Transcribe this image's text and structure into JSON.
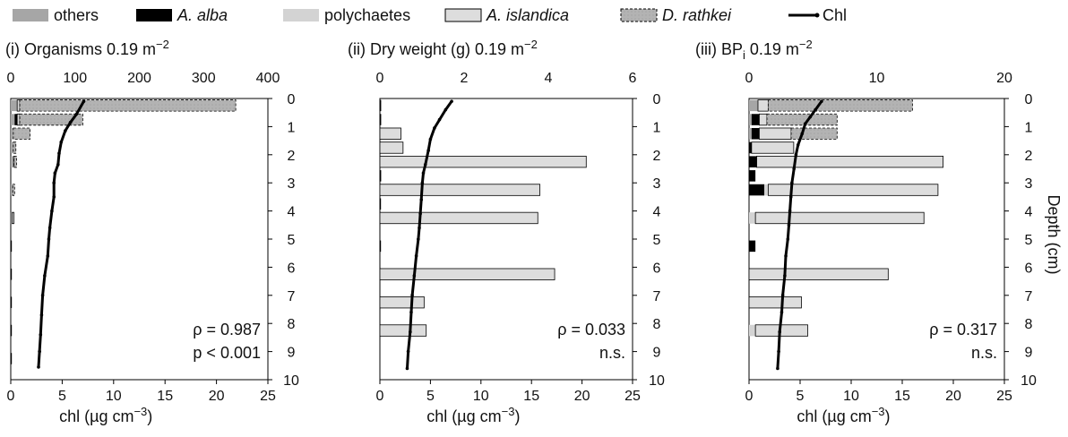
{
  "legend": {
    "items": [
      {
        "key": "others",
        "label": "others",
        "italic": false,
        "fill": "#a6a6a6",
        "stroke": "none",
        "dashed": false
      },
      {
        "key": "aalba",
        "label": "A. alba",
        "italic": true,
        "fill": "#000000",
        "stroke": "none",
        "dashed": false
      },
      {
        "key": "poly",
        "label": "polychaetes",
        "italic": false,
        "fill": "#d3d3d3",
        "stroke": "none",
        "dashed": false
      },
      {
        "key": "aisl",
        "label": "A. islandica",
        "italic": true,
        "fill": "#dddddd",
        "stroke": "#000000",
        "dashed": false
      },
      {
        "key": "drath",
        "label": "D. rathkei",
        "italic": true,
        "fill": "#b3b3b3",
        "stroke": "#000000",
        "dashed": true
      }
    ],
    "line_label": "Chl"
  },
  "colors": {
    "others": "#a6a6a6",
    "aalba": "#000000",
    "poly": "#d3d3d3",
    "aisl": "#dddddd",
    "drath": "#b3b3b3",
    "line": "#000000"
  },
  "depth_axis": {
    "label": "Depth (cm)",
    "ticks": [
      "0",
      "1",
      "2",
      "3",
      "4",
      "5",
      "6",
      "7",
      "8",
      "9",
      "10"
    ]
  },
  "chart_data": [
    {
      "type": "bar",
      "panel": "(i)",
      "title_prefix": "(i) Organisms 0.19 m",
      "title_sup": "−2",
      "top_axis": {
        "min": 0,
        "max": 400,
        "ticks": [
          "0",
          "100",
          "200",
          "300",
          "400"
        ]
      },
      "bottom_axis": {
        "min": 0,
        "max": 25,
        "ticks": [
          "0",
          "5",
          "10",
          "15",
          "20",
          "25"
        ],
        "label_prefix": "chl (µg cm",
        "label_sup": "−3",
        "label_suffix": ")"
      },
      "depth_range": [
        0,
        10
      ],
      "annotation": [
        "ρ = 0.987",
        "p < 0.001"
      ],
      "bars": [
        {
          "depth": 0.25,
          "segments": [
            {
              "series": "others",
              "value": 10
            },
            {
              "series": "aisl",
              "value": 4
            },
            {
              "series": "drath",
              "value": 336
            }
          ]
        },
        {
          "depth": 0.75,
          "segments": [
            {
              "series": "others",
              "value": 6
            },
            {
              "series": "aalba",
              "value": 4
            },
            {
              "series": "aisl",
              "value": 4
            },
            {
              "series": "drath",
              "value": 98
            }
          ]
        },
        {
          "depth": 1.25,
          "segments": [
            {
              "series": "others",
              "value": 4
            },
            {
              "series": "drath",
              "value": 26
            }
          ]
        },
        {
          "depth": 1.75,
          "segments": [
            {
              "series": "others",
              "value": 4
            },
            {
              "series": "drath",
              "value": 4
            }
          ]
        },
        {
          "depth": 2.25,
          "segments": [
            {
              "series": "others",
              "value": 4
            },
            {
              "series": "aalba",
              "value": 1
            },
            {
              "series": "drath",
              "value": 4
            }
          ]
        },
        {
          "depth": 3.25,
          "segments": [
            {
              "series": "others",
              "value": 3
            },
            {
              "series": "drath",
              "value": 3
            }
          ]
        },
        {
          "depth": 4.25,
          "segments": [
            {
              "series": "others",
              "value": 2
            },
            {
              "series": "aisl",
              "value": 3
            }
          ]
        },
        {
          "depth": 5.25,
          "segments": [
            {
              "series": "aalba",
              "value": 1
            }
          ]
        },
        {
          "depth": 6.25,
          "segments": [
            {
              "series": "aalba",
              "value": 1
            }
          ]
        },
        {
          "depth": 7.25,
          "segments": [
            {
              "series": "aalba",
              "value": 1
            }
          ]
        },
        {
          "depth": 8.25,
          "segments": [
            {
              "series": "aalba",
              "value": 1
            }
          ]
        },
        {
          "depth": 9.25,
          "segments": [
            {
              "series": "aalba",
              "value": 1
            }
          ]
        }
      ],
      "chl_line": [
        {
          "chl": 7.1,
          "depth": 0.1
        },
        {
          "chl": 6.4,
          "depth": 0.55
        },
        {
          "chl": 5.8,
          "depth": 0.85
        },
        {
          "chl": 5.3,
          "depth": 1.15
        },
        {
          "chl": 4.9,
          "depth": 1.55
        },
        {
          "chl": 4.7,
          "depth": 1.95
        },
        {
          "chl": 4.6,
          "depth": 2.35
        },
        {
          "chl": 4.3,
          "depth": 2.65
        },
        {
          "chl": 4.2,
          "depth": 3.0
        },
        {
          "chl": 4.2,
          "depth": 3.5
        },
        {
          "chl": 4.0,
          "depth": 4.0
        },
        {
          "chl": 3.8,
          "depth": 4.6
        },
        {
          "chl": 3.7,
          "depth": 5.0
        },
        {
          "chl": 3.6,
          "depth": 5.6
        },
        {
          "chl": 3.3,
          "depth": 6.3
        },
        {
          "chl": 3.1,
          "depth": 7.0
        },
        {
          "chl": 3.0,
          "depth": 7.7
        },
        {
          "chl": 2.9,
          "depth": 8.4
        },
        {
          "chl": 2.8,
          "depth": 9.0
        },
        {
          "chl": 2.7,
          "depth": 9.55
        }
      ]
    },
    {
      "type": "bar",
      "panel": "(ii)",
      "title_prefix": "(ii) Dry weight (g) 0.19 m",
      "title_sup": "−2",
      "top_axis": {
        "min": 0,
        "max": 6,
        "ticks": [
          "0",
          "2",
          "4",
          "6"
        ]
      },
      "bottom_axis": {
        "min": 0,
        "max": 25,
        "ticks": [
          "0",
          "5",
          "10",
          "15",
          "20",
          "25"
        ],
        "label_prefix": "chl (µg cm",
        "label_sup": "−3",
        "label_suffix": ")"
      },
      "depth_range": [
        0,
        10
      ],
      "annotation": [
        "ρ = 0.033",
        "n.s."
      ],
      "bars": [
        {
          "depth": 0.25,
          "segments": [
            {
              "series": "aalba",
              "value": 0.03
            }
          ]
        },
        {
          "depth": 0.75,
          "segments": [
            {
              "series": "aalba",
              "value": 0.03
            }
          ]
        },
        {
          "depth": 1.25,
          "segments": [
            {
              "series": "aisl",
              "value": 0.5
            }
          ]
        },
        {
          "depth": 1.75,
          "segments": [
            {
              "series": "aisl",
              "value": 0.55
            }
          ]
        },
        {
          "depth": 2.25,
          "segments": [
            {
              "series": "aisl",
              "value": 4.9
            }
          ]
        },
        {
          "depth": 2.75,
          "segments": [
            {
              "series": "aalba",
              "value": 0.03
            }
          ]
        },
        {
          "depth": 3.25,
          "segments": [
            {
              "series": "aisl",
              "value": 3.8
            }
          ]
        },
        {
          "depth": 3.75,
          "segments": [
            {
              "series": "aalba",
              "value": 0.02
            }
          ]
        },
        {
          "depth": 4.25,
          "segments": [
            {
              "series": "aisl",
              "value": 3.75
            }
          ]
        },
        {
          "depth": 5.25,
          "segments": [
            {
              "series": "aalba",
              "value": 0.02
            }
          ]
        },
        {
          "depth": 6.25,
          "segments": [
            {
              "series": "aisl",
              "value": 4.15
            }
          ]
        },
        {
          "depth": 7.25,
          "segments": [
            {
              "series": "aisl",
              "value": 1.05
            }
          ]
        },
        {
          "depth": 8.25,
          "segments": [
            {
              "series": "aisl",
              "value": 1.1
            }
          ]
        }
      ],
      "chl_line": [
        {
          "chl": 7.1,
          "depth": 0.1
        },
        {
          "chl": 6.5,
          "depth": 0.4
        },
        {
          "chl": 5.9,
          "depth": 0.75
        },
        {
          "chl": 5.4,
          "depth": 1.05
        },
        {
          "chl": 5.0,
          "depth": 1.45
        },
        {
          "chl": 4.8,
          "depth": 1.85
        },
        {
          "chl": 4.5,
          "depth": 2.35
        },
        {
          "chl": 4.3,
          "depth": 2.65
        },
        {
          "chl": 4.2,
          "depth": 3.0
        },
        {
          "chl": 4.1,
          "depth": 3.6
        },
        {
          "chl": 4.0,
          "depth": 4.1
        },
        {
          "chl": 3.9,
          "depth": 4.6
        },
        {
          "chl": 3.8,
          "depth": 5.0
        },
        {
          "chl": 3.6,
          "depth": 5.6
        },
        {
          "chl": 3.4,
          "depth": 6.3
        },
        {
          "chl": 3.2,
          "depth": 7.0
        },
        {
          "chl": 3.1,
          "depth": 7.6
        },
        {
          "chl": 3.0,
          "depth": 8.3
        },
        {
          "chl": 2.8,
          "depth": 9.0
        },
        {
          "chl": 2.7,
          "depth": 9.6
        }
      ]
    },
    {
      "type": "bar",
      "panel": "(iii)",
      "title_prefix": "(iii) BP",
      "title_sub": "i",
      "title_suffix": " 0.19 m",
      "title_sup": "−2",
      "top_axis": {
        "min": 0,
        "max": 20,
        "ticks": [
          "0",
          "10",
          "20"
        ]
      },
      "bottom_axis": {
        "min": 0,
        "max": 25,
        "ticks": [
          "0",
          "5",
          "10",
          "15",
          "20",
          "25"
        ],
        "label_prefix": "chl (µg cm",
        "label_sup": "−3",
        "label_suffix": ")"
      },
      "depth_range": [
        0,
        10
      ],
      "annotation": [
        "ρ = 0.317",
        "n.s."
      ],
      "bars": [
        {
          "depth": 0.25,
          "segments": [
            {
              "series": "others",
              "value": 0.7
            },
            {
              "series": "aisl",
              "value": 0.8
            },
            {
              "series": "drath",
              "value": 11.3
            }
          ]
        },
        {
          "depth": 0.75,
          "segments": [
            {
              "series": "others",
              "value": 0.2
            },
            {
              "series": "aalba",
              "value": 0.6
            },
            {
              "series": "aisl",
              "value": 0.6
            },
            {
              "series": "drath",
              "value": 5.5
            }
          ]
        },
        {
          "depth": 1.25,
          "segments": [
            {
              "series": "others",
              "value": 0.2
            },
            {
              "series": "aalba",
              "value": 0.6
            },
            {
              "series": "aisl",
              "value": 2.5
            },
            {
              "series": "drath",
              "value": 3.6
            }
          ]
        },
        {
          "depth": 1.75,
          "segments": [
            {
              "series": "aalba",
              "value": 0.2
            },
            {
              "series": "aisl",
              "value": 3.3
            }
          ]
        },
        {
          "depth": 2.25,
          "segments": [
            {
              "series": "aalba",
              "value": 0.6
            },
            {
              "series": "aisl",
              "value": 14.6
            }
          ]
        },
        {
          "depth": 2.75,
          "segments": [
            {
              "series": "aalba",
              "value": 0.5
            }
          ]
        },
        {
          "depth": 3.25,
          "segments": [
            {
              "series": "aalba",
              "value": 1.2
            },
            {
              "series": "poly",
              "value": 0.3
            },
            {
              "series": "aisl",
              "value": 13.3
            }
          ]
        },
        {
          "depth": 4.25,
          "segments": [
            {
              "series": "poly",
              "value": 0.5
            },
            {
              "series": "aisl",
              "value": 13.2
            }
          ]
        },
        {
          "depth": 5.25,
          "segments": [
            {
              "series": "aalba",
              "value": 0.5
            }
          ]
        },
        {
          "depth": 6.25,
          "segments": [
            {
              "series": "aisl",
              "value": 10.9
            }
          ]
        },
        {
          "depth": 7.25,
          "segments": [
            {
              "series": "aisl",
              "value": 4.1
            }
          ]
        },
        {
          "depth": 8.25,
          "segments": [
            {
              "series": "poly",
              "value": 0.5
            },
            {
              "series": "aisl",
              "value": 4.1
            }
          ]
        }
      ],
      "chl_line": [
        {
          "chl": 7.1,
          "depth": 0.1
        },
        {
          "chl": 6.5,
          "depth": 0.4
        },
        {
          "chl": 6.0,
          "depth": 0.65
        },
        {
          "chl": 5.5,
          "depth": 0.9
        },
        {
          "chl": 5.2,
          "depth": 1.25
        },
        {
          "chl": 4.8,
          "depth": 1.65
        },
        {
          "chl": 4.6,
          "depth": 2.0
        },
        {
          "chl": 4.4,
          "depth": 2.5
        },
        {
          "chl": 4.2,
          "depth": 3.0
        },
        {
          "chl": 4.1,
          "depth": 3.5
        },
        {
          "chl": 4.0,
          "depth": 4.0
        },
        {
          "chl": 3.9,
          "depth": 4.5
        },
        {
          "chl": 3.8,
          "depth": 5.0
        },
        {
          "chl": 3.6,
          "depth": 5.6
        },
        {
          "chl": 3.5,
          "depth": 6.3
        },
        {
          "chl": 3.3,
          "depth": 7.0
        },
        {
          "chl": 3.2,
          "depth": 7.6
        },
        {
          "chl": 3.0,
          "depth": 8.3
        },
        {
          "chl": 2.9,
          "depth": 9.0
        },
        {
          "chl": 2.8,
          "depth": 9.6
        }
      ]
    }
  ]
}
